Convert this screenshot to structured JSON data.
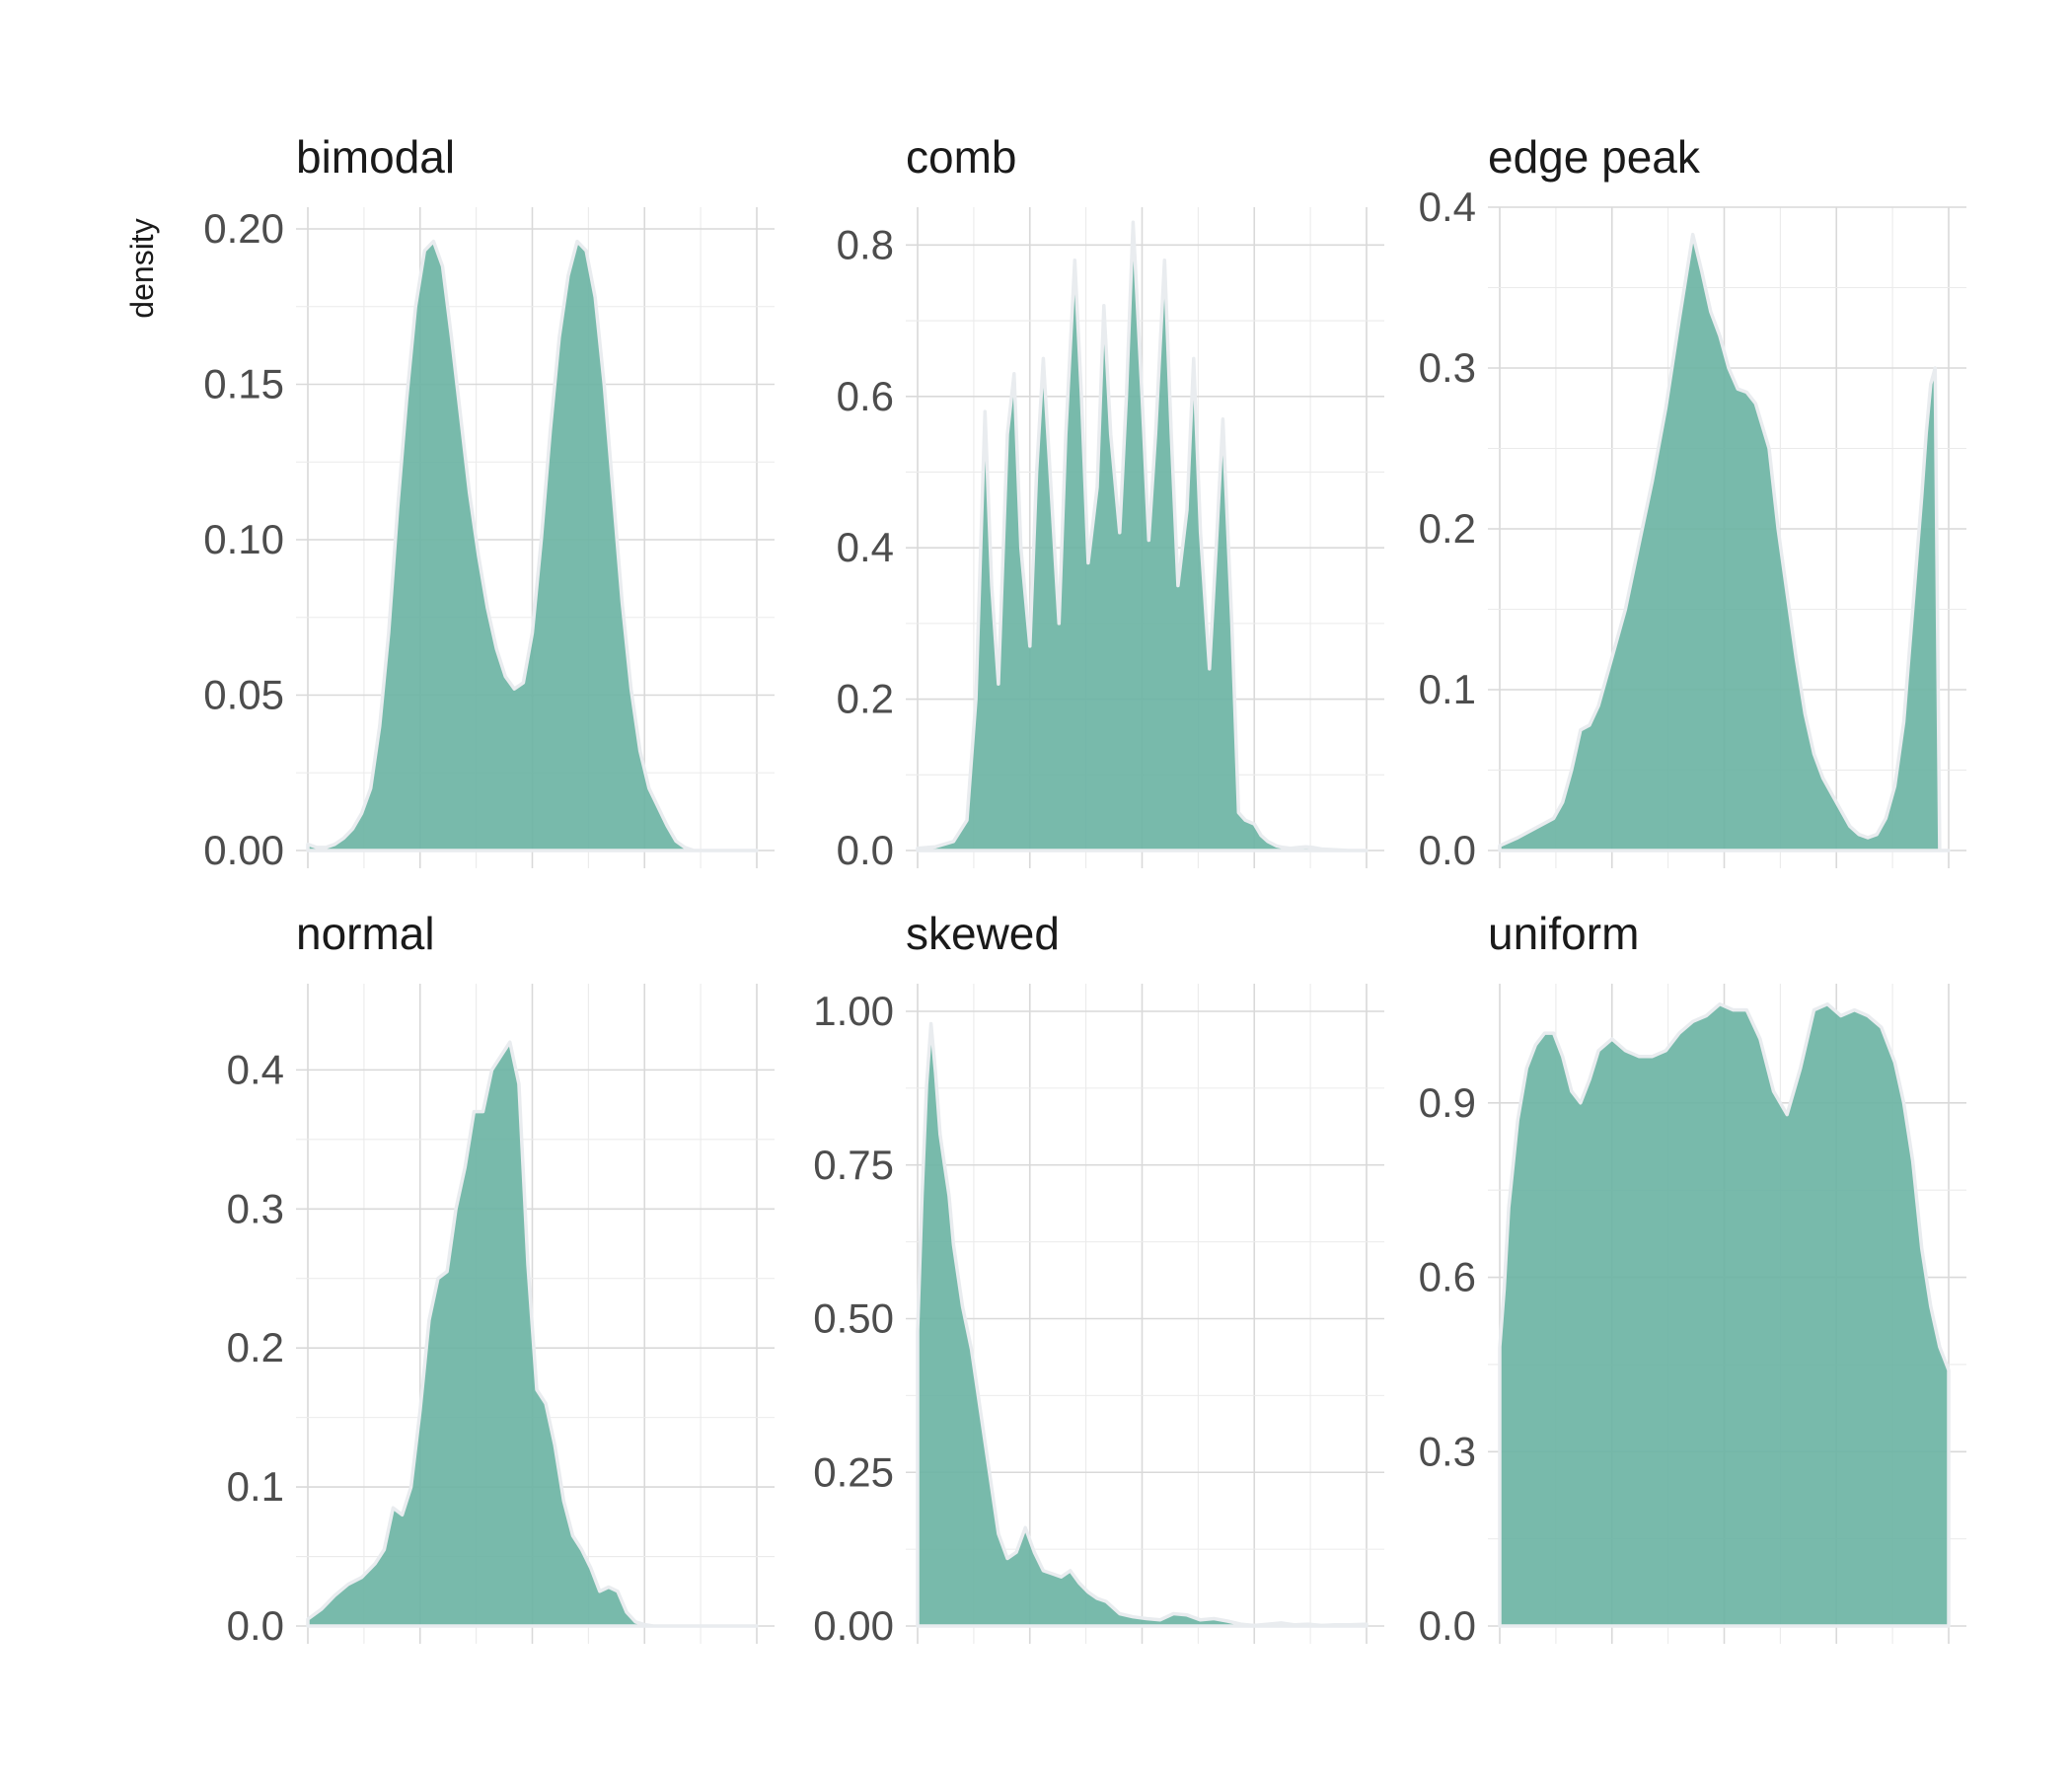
{
  "ylabel": "density",
  "colors": {
    "fill": "#69b3a2",
    "outline": "#e9ecef",
    "grid": "#d9d9d9"
  },
  "chart_data": [
    {
      "type": "area",
      "title": "bimodal",
      "ylim": [
        0,
        0.2
      ],
      "yticks": [
        "0.00",
        "0.05",
        "0.10",
        "0.15",
        "0.20"
      ],
      "ytick_values": [
        0,
        0.05,
        0.1,
        0.15,
        0.2
      ],
      "x": [
        0,
        0.02,
        0.04,
        0.06,
        0.08,
        0.1,
        0.12,
        0.14,
        0.16,
        0.18,
        0.2,
        0.22,
        0.24,
        0.26,
        0.28,
        0.3,
        0.32,
        0.34,
        0.36,
        0.38,
        0.4,
        0.42,
        0.44,
        0.46,
        0.48,
        0.5,
        0.52,
        0.54,
        0.56,
        0.58,
        0.6,
        0.62,
        0.64,
        0.66,
        0.68,
        0.7,
        0.72,
        0.74,
        0.76,
        0.78,
        0.8,
        0.82,
        0.84,
        0.86,
        0.88,
        0.9,
        0.92,
        0.94,
        0.96,
        0.98,
        1.0
      ],
      "y": [
        0.002,
        0.001,
        0.001,
        0.002,
        0.004,
        0.007,
        0.012,
        0.02,
        0.04,
        0.07,
        0.11,
        0.145,
        0.175,
        0.193,
        0.196,
        0.188,
        0.165,
        0.14,
        0.115,
        0.095,
        0.078,
        0.065,
        0.056,
        0.052,
        0.054,
        0.07,
        0.1,
        0.135,
        0.165,
        0.185,
        0.196,
        0.193,
        0.178,
        0.15,
        0.115,
        0.08,
        0.052,
        0.032,
        0.02,
        0.014,
        0.008,
        0.003,
        0.001,
        0,
        0,
        0,
        0,
        0,
        0,
        0,
        0
      ]
    },
    {
      "type": "area",
      "title": "comb",
      "ylim": [
        0,
        0.85
      ],
      "yticks": [
        "0.0",
        "0.2",
        "0.4",
        "0.6",
        "0.8"
      ],
      "ytick_values": [
        0,
        0.2,
        0.4,
        0.6,
        0.8
      ],
      "x": [
        0,
        0.04,
        0.08,
        0.11,
        0.13,
        0.15,
        0.165,
        0.18,
        0.2,
        0.215,
        0.23,
        0.25,
        0.265,
        0.28,
        0.3,
        0.315,
        0.33,
        0.35,
        0.365,
        0.38,
        0.4,
        0.415,
        0.43,
        0.45,
        0.465,
        0.48,
        0.5,
        0.515,
        0.53,
        0.55,
        0.565,
        0.58,
        0.6,
        0.615,
        0.63,
        0.65,
        0.665,
        0.68,
        0.7,
        0.715,
        0.73,
        0.75,
        0.765,
        0.78,
        0.8,
        0.815,
        0.83,
        0.85,
        0.865,
        0.88,
        0.9,
        0.93,
        0.96,
        1.0
      ],
      "y": [
        0.003,
        0.005,
        0.012,
        0.04,
        0.2,
        0.58,
        0.35,
        0.22,
        0.55,
        0.63,
        0.4,
        0.27,
        0.5,
        0.65,
        0.45,
        0.3,
        0.55,
        0.78,
        0.6,
        0.38,
        0.48,
        0.72,
        0.55,
        0.42,
        0.6,
        0.83,
        0.6,
        0.41,
        0.55,
        0.78,
        0.55,
        0.35,
        0.45,
        0.65,
        0.42,
        0.24,
        0.4,
        0.57,
        0.3,
        0.05,
        0.04,
        0.035,
        0.02,
        0.012,
        0.006,
        0.004,
        0.003,
        0.004,
        0.005,
        0.004,
        0.002,
        0.001,
        0,
        0
      ]
    },
    {
      "type": "area",
      "title": "edge peak",
      "ylim": [
        0,
        0.4
      ],
      "yticks": [
        "0.0",
        "0.1",
        "0.2",
        "0.3",
        "0.4"
      ],
      "ytick_values": [
        0,
        0.1,
        0.2,
        0.3,
        0.4
      ],
      "x": [
        0,
        0.04,
        0.08,
        0.12,
        0.14,
        0.16,
        0.18,
        0.2,
        0.22,
        0.25,
        0.28,
        0.31,
        0.34,
        0.37,
        0.4,
        0.43,
        0.45,
        0.47,
        0.49,
        0.51,
        0.53,
        0.55,
        0.57,
        0.6,
        0.62,
        0.64,
        0.66,
        0.68,
        0.7,
        0.72,
        0.74,
        0.76,
        0.78,
        0.8,
        0.82,
        0.84,
        0.86,
        0.88,
        0.9,
        0.92,
        0.94,
        0.95,
        0.96,
        0.97,
        0.98,
        0.99,
        1.0
      ],
      "y": [
        0.003,
        0.008,
        0.014,
        0.02,
        0.03,
        0.05,
        0.075,
        0.078,
        0.09,
        0.12,
        0.15,
        0.19,
        0.23,
        0.275,
        0.33,
        0.383,
        0.36,
        0.335,
        0.32,
        0.3,
        0.287,
        0.285,
        0.278,
        0.25,
        0.2,
        0.16,
        0.12,
        0.085,
        0.06,
        0.045,
        0.035,
        0.025,
        0.015,
        0.01,
        0.008,
        0.01,
        0.02,
        0.04,
        0.08,
        0.15,
        0.22,
        0.26,
        0.29,
        0.3,
        0,
        0,
        0
      ]
    },
    {
      "type": "area",
      "title": "normal",
      "ylim": [
        0,
        0.44
      ],
      "yticks": [
        "0.0",
        "0.1",
        "0.2",
        "0.3",
        "0.4"
      ],
      "ytick_values": [
        0,
        0.1,
        0.2,
        0.3,
        0.4
      ],
      "x": [
        0,
        0.03,
        0.06,
        0.09,
        0.12,
        0.15,
        0.17,
        0.19,
        0.21,
        0.23,
        0.25,
        0.27,
        0.29,
        0.31,
        0.33,
        0.35,
        0.37,
        0.39,
        0.41,
        0.43,
        0.45,
        0.47,
        0.49,
        0.51,
        0.53,
        0.55,
        0.57,
        0.59,
        0.61,
        0.63,
        0.65,
        0.67,
        0.69,
        0.71,
        0.73,
        0.75,
        0.77,
        0.79,
        0.81,
        0.83,
        0.85,
        0.87,
        0.89,
        0.91,
        0.93,
        0.95,
        0.97,
        1.0
      ],
      "y": [
        0.005,
        0.012,
        0.022,
        0.03,
        0.035,
        0.045,
        0.055,
        0.085,
        0.08,
        0.1,
        0.155,
        0.22,
        0.25,
        0.255,
        0.3,
        0.33,
        0.37,
        0.37,
        0.4,
        0.41,
        0.42,
        0.39,
        0.26,
        0.17,
        0.16,
        0.13,
        0.09,
        0.065,
        0.055,
        0.042,
        0.025,
        0.028,
        0.025,
        0.01,
        0.003,
        0.001,
        0,
        0,
        0,
        0,
        0,
        0,
        0,
        0,
        0,
        0,
        0,
        0
      ]
    },
    {
      "type": "area",
      "title": "skewed",
      "ylim": [
        0,
        1.0
      ],
      "yticks": [
        "0.00",
        "0.25",
        "0.50",
        "0.75",
        "1.00"
      ],
      "ytick_values": [
        0,
        0.25,
        0.5,
        0.75,
        1.0
      ],
      "x": [
        0,
        0.01,
        0.02,
        0.03,
        0.04,
        0.05,
        0.06,
        0.07,
        0.08,
        0.1,
        0.12,
        0.14,
        0.16,
        0.18,
        0.2,
        0.22,
        0.24,
        0.26,
        0.28,
        0.3,
        0.32,
        0.34,
        0.36,
        0.38,
        0.4,
        0.42,
        0.45,
        0.48,
        0.51,
        0.54,
        0.57,
        0.6,
        0.63,
        0.66,
        0.69,
        0.72,
        0.75,
        0.78,
        0.81,
        0.84,
        0.87,
        0.9,
        0.93,
        0.96,
        1.0
      ],
      "y": [
        0.48,
        0.7,
        0.88,
        0.98,
        0.9,
        0.8,
        0.75,
        0.7,
        0.62,
        0.52,
        0.45,
        0.35,
        0.25,
        0.15,
        0.11,
        0.12,
        0.16,
        0.12,
        0.09,
        0.085,
        0.08,
        0.09,
        0.07,
        0.055,
        0.045,
        0.04,
        0.02,
        0.015,
        0.012,
        0.01,
        0.02,
        0.018,
        0.01,
        0.012,
        0.008,
        0.003,
        0.001,
        0.003,
        0.005,
        0.002,
        0.003,
        0.001,
        0.002,
        0.002,
        0.003
      ]
    },
    {
      "type": "area",
      "title": "uniform",
      "ylim": [
        0,
        1.1
      ],
      "yticks": [
        "0.0",
        "0.3",
        "0.6",
        "0.9"
      ],
      "ytick_values": [
        0,
        0.3,
        0.6,
        0.9
      ],
      "x": [
        0,
        0.01,
        0.02,
        0.04,
        0.06,
        0.08,
        0.1,
        0.12,
        0.14,
        0.16,
        0.18,
        0.2,
        0.22,
        0.25,
        0.28,
        0.31,
        0.34,
        0.37,
        0.4,
        0.43,
        0.46,
        0.49,
        0.52,
        0.55,
        0.58,
        0.61,
        0.64,
        0.67,
        0.7,
        0.73,
        0.76,
        0.79,
        0.82,
        0.85,
        0.88,
        0.9,
        0.92,
        0.94,
        0.96,
        0.98,
        0.99,
        1.0
      ],
      "y": [
        0.48,
        0.58,
        0.72,
        0.87,
        0.96,
        1.0,
        1.02,
        1.02,
        0.98,
        0.92,
        0.9,
        0.94,
        0.99,
        1.01,
        0.99,
        0.98,
        0.98,
        0.99,
        1.02,
        1.04,
        1.05,
        1.07,
        1.06,
        1.06,
        1.01,
        0.92,
        0.88,
        0.96,
        1.06,
        1.07,
        1.05,
        1.06,
        1.05,
        1.03,
        0.97,
        0.9,
        0.8,
        0.65,
        0.55,
        0.48,
        0.46,
        0.44
      ]
    }
  ]
}
